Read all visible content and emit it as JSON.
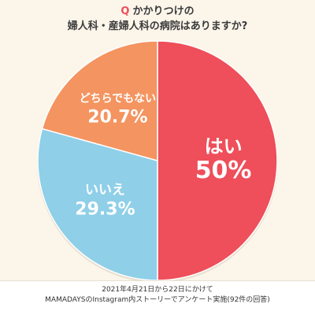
{
  "header": {
    "q_mark": "Q",
    "line1": "かかりつけの",
    "line2": "婦人科・産婦人科の病院はありますか?"
  },
  "chart_data": {
    "type": "pie",
    "title": "Q かかりつけの婦人科・産婦人科の病院はありますか?",
    "slices": [
      {
        "label": "はい",
        "value": 50,
        "display": "50%",
        "color": "#ee4f5a"
      },
      {
        "label": "いいえ",
        "value": 29.3,
        "display": "29.3%",
        "color": "#8fcfe8"
      },
      {
        "label": "どちらでもない",
        "value": 20.7,
        "display": "20.7%",
        "color": "#f49460"
      }
    ],
    "start": "12 o'clock",
    "direction": "clockwise"
  },
  "footer": {
    "line1": "2021年4月21日から22日にかけて",
    "line2": "MAMADAYSのInstagram内ストーリーでアンケート実施(92件の回答)"
  }
}
